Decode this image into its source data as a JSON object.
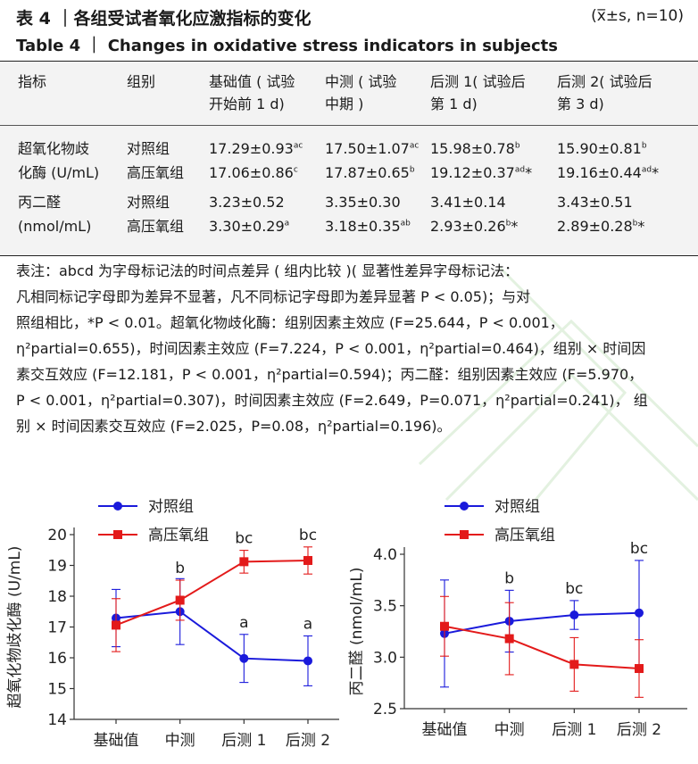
{
  "title_cn": "表 4 ｜各组受试者氧化应激指标的变化",
  "stat_note": "(x̅±s, n=10)",
  "title_en": "Table 4 ｜ Changes in oxidative stress indicators in subjects",
  "table": {
    "headers": [
      "指标",
      "组别",
      "基础值 ( 试验开始前 1 d)",
      "中测 ( 试验中期 )",
      "后测 1( 试验后第 1 d)",
      "后测 2( 试验后第 3 d)"
    ],
    "header_lines": [
      [
        "指标"
      ],
      [
        "组别"
      ],
      [
        "基础值 ( 试验",
        "开始前 1 d)"
      ],
      [
        "中测 ( 试验",
        "中期 )"
      ],
      [
        "后测 1( 试验后",
        "第 1 d)"
      ],
      [
        "后测 2( 试验后",
        "第 3 d)"
      ]
    ],
    "indicators": [
      {
        "name_lines": [
          "超氧化物歧",
          "化酶 (U/mL)"
        ],
        "rows": [
          {
            "group": "对照组",
            "cells": [
              [
                "17.29±0.93",
                "ac",
                ""
              ],
              [
                "17.50±1.07",
                "ac",
                ""
              ],
              [
                "15.98±0.78",
                "b",
                ""
              ],
              [
                "15.90±0.81",
                "b",
                ""
              ]
            ]
          },
          {
            "group": "高压氧组",
            "cells": [
              [
                "17.06±0.86",
                "c",
                ""
              ],
              [
                "17.87±0.65",
                "b",
                ""
              ],
              [
                "19.12±0.37",
                "ad",
                "*"
              ],
              [
                "19.16±0.44",
                "ad",
                "*"
              ]
            ]
          }
        ]
      },
      {
        "name_lines": [
          "丙二醛",
          "(nmol/mL)"
        ],
        "rows": [
          {
            "group": "对照组",
            "cells": [
              [
                "3.23±0.52",
                "",
                ""
              ],
              [
                "3.35±0.30",
                "",
                ""
              ],
              [
                "3.41±0.14",
                "",
                ""
              ],
              [
                "3.43±0.51",
                "",
                ""
              ]
            ]
          },
          {
            "group": "高压氧组",
            "cells": [
              [
                "3.30±0.29",
                "a",
                ""
              ],
              [
                "3.18±0.35",
                "ab",
                ""
              ],
              [
                "2.93±0.26",
                "b",
                "*"
              ],
              [
                "2.89±0.28",
                "b",
                "*"
              ]
            ]
          }
        ]
      }
    ]
  },
  "footnote_lines": [
    "表注：abcd 为字母标记法的时间点差异 ( 组内比较 )( 显著性差异字母标记法：",
    "凡相同标记字母即为差异不显著，凡不同标记字母即为差异显著 P < 0.05)；与对",
    "照组相比，*P < 0.01。超氧化物歧化酶：组别因素主效应 (F=25.644，P < 0.001，",
    "η²partial=0.655)，时间因素主效应 (F=7.224，P < 0.001，η²partial=0.464)，组别 × 时间因",
    "素交互效应 (F=12.181，P < 0.001，η²partial=0.594)；丙二醛：组别因素主效应 (F=5.970，",
    "P < 0.001，η²partial=0.307)，时间因素主效应 (F=2.649，P=0.071，η²partial=0.241)， 组",
    "别 × 时间因素交互效应 (F=2.025，P=0.08，η²partial=0.196)。"
  ],
  "chart_data": [
    {
      "type": "line",
      "ylabel": "超氧化物歧化酶 (U/mL)",
      "xlabel": "",
      "categories": [
        "基础值",
        "中测",
        "后测 1",
        "后测 2"
      ],
      "ylim": [
        14,
        20
      ],
      "yticks": [
        14,
        15,
        16,
        17,
        18,
        19,
        20
      ],
      "legend_position": "top-left",
      "grid": false,
      "series": [
        {
          "name": "对照组",
          "color": "#1a1adb",
          "values": [
            17.29,
            17.5,
            15.98,
            15.9
          ],
          "errors": [
            0.93,
            1.07,
            0.78,
            0.81
          ],
          "labels": [
            "",
            "",
            "a",
            "a"
          ]
        },
        {
          "name": "高压氧组",
          "color": "#e31a1a",
          "values": [
            17.06,
            17.87,
            19.12,
            19.16
          ],
          "errors": [
            0.86,
            0.65,
            0.37,
            0.44
          ],
          "labels": [
            "",
            "b",
            "bc",
            "bc"
          ]
        }
      ]
    },
    {
      "type": "line",
      "ylabel": "丙二醛 (nmol/mL)",
      "xlabel": "",
      "categories": [
        "基础值",
        "中测",
        "后测 1",
        "后测 2"
      ],
      "ylim": [
        2.5,
        4.0
      ],
      "yticks": [
        2.5,
        3.0,
        3.5,
        4.0
      ],
      "ytick_labels": [
        "2.5",
        "3.0",
        "3.5",
        "4.0"
      ],
      "legend_position": "top-left",
      "grid": false,
      "series": [
        {
          "name": "对照组",
          "color": "#1a1adb",
          "values": [
            3.23,
            3.35,
            3.41,
            3.43
          ],
          "errors": [
            0.52,
            0.3,
            0.14,
            0.51
          ],
          "labels": [
            "",
            "b",
            "bc",
            "bc"
          ]
        },
        {
          "name": "高压氧组",
          "color": "#e31a1a",
          "values": [
            3.3,
            3.18,
            2.93,
            2.89
          ],
          "errors": [
            0.29,
            0.35,
            0.26,
            0.28
          ],
          "labels": [
            "",
            "",
            "",
            ""
          ]
        }
      ]
    }
  ]
}
